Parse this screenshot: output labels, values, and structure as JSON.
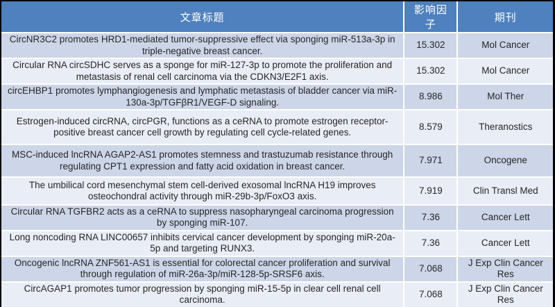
{
  "table": {
    "headers": {
      "title": "文章标题",
      "impact_factor": "影响因子",
      "journal": "期刊"
    },
    "rows": [
      {
        "title": "CircNR3C2 promotes HRD1-mediated tumor-suppressive effect via sponging miR-513a-3p in triple-negative breast cancer.",
        "impact_factor": "15.302",
        "journal": "Mol Cancer"
      },
      {
        "title": "Circular RNA circSDHC serves as a sponge for miR-127-3p to promote the proliferation and metastasis of renal cell carcinoma via the CDKN3/E2F1 axis.",
        "impact_factor": "15.302",
        "journal": "Mol Cancer"
      },
      {
        "title": "circEHBP1 promotes lymphangiogenesis and lymphatic metastasis of bladder cancer via miR-130a-3p/TGFβR1/VEGF-D signaling.",
        "impact_factor": "8.986",
        "journal": "Mol Ther"
      },
      {
        "title": "Estrogen-induced circRNA, circPGR, functions as a ceRNA to promote estrogen receptor-positive breast cancer cell growth by regulating cell cycle-related genes.",
        "impact_factor": "8.579",
        "journal": "Theranostics"
      },
      {
        "title": "MSC-induced lncRNA AGAP2-AS1 promotes stemness and trastuzumab resistance through regulating CPT1 expression and fatty acid oxidation in breast cancer.",
        "impact_factor": "7.971",
        "journal": "Oncogene"
      },
      {
        "title": "The umbilical cord mesenchymal stem cell-derived exosomal lncRNA H19 improves osteochondral activity through miR-29b-3p/FoxO3 axis.",
        "impact_factor": "7.919",
        "journal": "Clin Transl Med"
      },
      {
        "title": "Circular RNA TGFBR2 acts as a ceRNA to suppress nasopharyngeal carcinoma progression by sponging miR-107.",
        "impact_factor": "7.36",
        "journal": "Cancer Lett"
      },
      {
        "title": "Long noncoding RNA LINC00657 inhibits cervical cancer development by sponging miR-20a-5p and targeting RUNX3.",
        "impact_factor": "7.36",
        "journal": "Cancer Lett"
      },
      {
        "title": "Oncogenic lncRNA ZNF561-AS1 is essential for colorectal cancer proliferation and survival through regulation of miR-26a-3p/miR-128-5p-SRSF6 axis.",
        "impact_factor": "7.068",
        "journal": "J Exp Clin Cancer Res"
      },
      {
        "title": "CircAGAP1 promotes tumor progression by sponging miR-15-5p in clear cell renal cell carcinoma.",
        "impact_factor": "7.068",
        "journal": "J Exp Clin Cancer Res"
      }
    ]
  },
  "colors": {
    "header_bg": "#4E81BD",
    "header_text": "#FFFFFF",
    "row_band_dark": "#CDD5E8",
    "row_band_light": "#E9EDF6",
    "body_text": "#262626",
    "frame": "#000000"
  }
}
